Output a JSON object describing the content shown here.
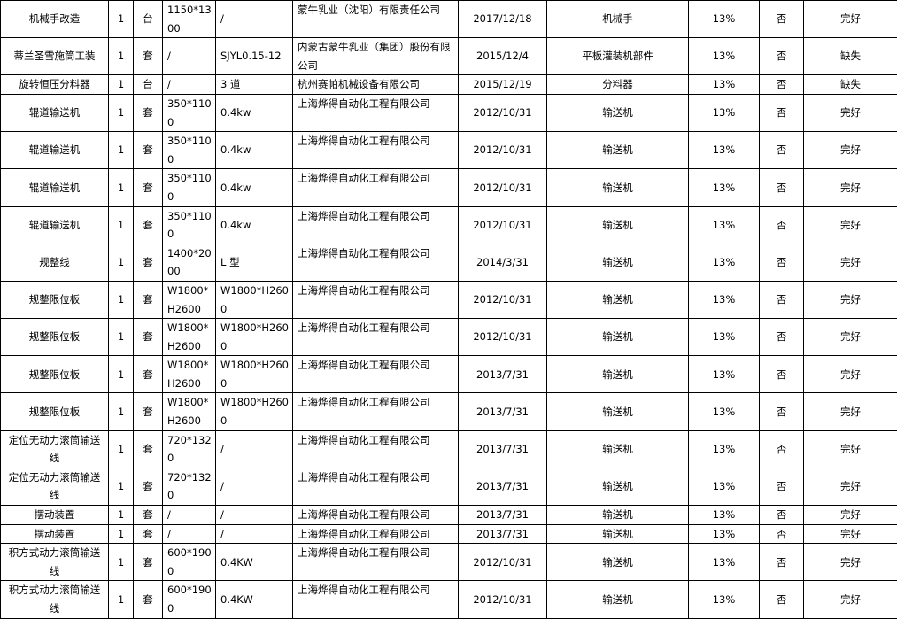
{
  "table": {
    "rows": [
      [
        "机械手改造",
        "1",
        "台",
        "1150*1300",
        "/",
        "蒙牛乳业（沈阳）有限责任公司",
        "2017/12/18",
        "机械手",
        "13%",
        "否",
        "完好"
      ],
      [
        "蒂兰圣雪施筒工装",
        "1",
        "套",
        "/",
        "SJYL0.15-12",
        "内蒙古蒙牛乳业（集团）股份有限公司",
        "2015/12/4",
        "平板灌装机部件",
        "13%",
        "否",
        "缺失"
      ],
      [
        "旋转恒压分料器",
        "1",
        "台",
        "/",
        "3 道",
        "杭州赛帕机械设备有限公司",
        "2015/12/19",
        "分料器",
        "13%",
        "否",
        "缺失"
      ],
      [
        "辊道输送机",
        "1",
        "套",
        "350*1100",
        "0.4kw",
        "上海烨得自动化工程有限公司",
        "2012/10/31",
        "输送机",
        "13%",
        "否",
        "完好"
      ],
      [
        "辊道输送机",
        "1",
        "套",
        "350*1100",
        "0.4kw",
        "上海烨得自动化工程有限公司",
        "2012/10/31",
        "输送机",
        "13%",
        "否",
        "完好"
      ],
      [
        "辊道输送机",
        "1",
        "套",
        "350*1100",
        "0.4kw",
        "上海烨得自动化工程有限公司",
        "2012/10/31",
        "输送机",
        "13%",
        "否",
        "完好"
      ],
      [
        "辊道输送机",
        "1",
        "套",
        "350*1100",
        "0.4kw",
        "上海烨得自动化工程有限公司",
        "2012/10/31",
        "输送机",
        "13%",
        "否",
        "完好"
      ],
      [
        "规整线",
        "1",
        "套",
        "1400*2000",
        "L 型",
        "上海烨得自动化工程有限公司",
        "2014/3/31",
        "输送机",
        "13%",
        "否",
        "完好"
      ],
      [
        "规整限位板",
        "1",
        "套",
        "W1800*H2600",
        "W1800*H2600",
        "上海烨得自动化工程有限公司",
        "2012/10/31",
        "输送机",
        "13%",
        "否",
        "完好"
      ],
      [
        "规整限位板",
        "1",
        "套",
        "W1800*H2600",
        "W1800*H2600",
        "上海烨得自动化工程有限公司",
        "2012/10/31",
        "输送机",
        "13%",
        "否",
        "完好"
      ],
      [
        "规整限位板",
        "1",
        "套",
        "W1800*H2600",
        "W1800*H2600",
        "上海烨得自动化工程有限公司",
        "2013/7/31",
        "输送机",
        "13%",
        "否",
        "完好"
      ],
      [
        "规整限位板",
        "1",
        "套",
        "W1800*H2600",
        "W1800*H2600",
        "上海烨得自动化工程有限公司",
        "2013/7/31",
        "输送机",
        "13%",
        "否",
        "完好"
      ],
      [
        "定位无动力滚筒输送线",
        "1",
        "套",
        "720*1320",
        "/",
        "上海烨得自动化工程有限公司",
        "2013/7/31",
        "输送机",
        "13%",
        "否",
        "完好"
      ],
      [
        "定位无动力滚筒输送线",
        "1",
        "套",
        "720*1320",
        "/",
        "上海烨得自动化工程有限公司",
        "2013/7/31",
        "输送机",
        "13%",
        "否",
        "完好"
      ],
      [
        "摆动装置",
        "1",
        "套",
        "/",
        "/",
        "上海烨得自动化工程有限公司",
        "2013/7/31",
        "输送机",
        "13%",
        "否",
        "完好"
      ],
      [
        "摆动装置",
        "1",
        "套",
        "/",
        "/",
        "上海烨得自动化工程有限公司",
        "2013/7/31",
        "输送机",
        "13%",
        "否",
        "完好"
      ],
      [
        "积方式动力滚筒输送线",
        "1",
        "套",
        "600*1900",
        "0.4KW",
        "上海烨得自动化工程有限公司",
        "2012/10/31",
        "输送机",
        "13%",
        "否",
        "完好"
      ],
      [
        "积方式动力滚筒输送线",
        "1",
        "套",
        "600*1900",
        "0.4KW",
        "上海烨得自动化工程有限公司",
        "2012/10/31",
        "输送机",
        "13%",
        "否",
        "完好"
      ]
    ]
  }
}
